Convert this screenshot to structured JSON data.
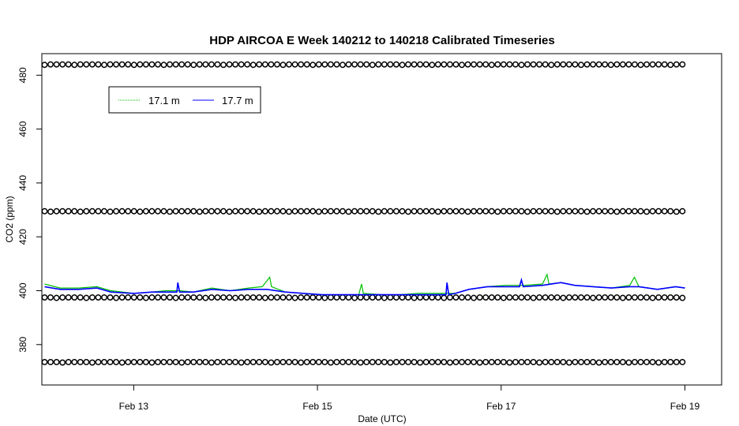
{
  "chart_data": {
    "type": "line",
    "title": "HDP AIRCOA E  Week 140212 to 140218  Calibrated Timeseries",
    "xlabel": "Date (UTC)",
    "ylabel": "CO2 (ppm)",
    "xlim_days": [
      12.0,
      19.4
    ],
    "ylim": [
      365,
      488
    ],
    "x_ticks": [
      {
        "value": 13,
        "label": "Feb 13"
      },
      {
        "value": 15,
        "label": "Feb 15"
      },
      {
        "value": 17,
        "label": "Feb 17"
      },
      {
        "value": 19,
        "label": "Feb 19"
      }
    ],
    "y_ticks": [
      380,
      400,
      420,
      440,
      460,
      480
    ],
    "grid": false,
    "legend_position": "top-left",
    "series": [
      {
        "name": "17.1 m",
        "color": "#00c000",
        "x": [
          12.03,
          12.2,
          12.4,
          12.6,
          12.75,
          13.0,
          13.2,
          13.35,
          13.5,
          13.65,
          13.85,
          14.05,
          14.25,
          14.4,
          14.48,
          14.5,
          14.65,
          14.85,
          15.05,
          15.3,
          15.45,
          15.48,
          15.5,
          15.7,
          15.9,
          16.1,
          16.3,
          16.4,
          16.5,
          16.65,
          16.85,
          17.05,
          17.25,
          17.45,
          17.5,
          17.52,
          17.65,
          17.8,
          18.0,
          18.2,
          18.4,
          18.45,
          18.5,
          18.7,
          18.9,
          19.0
        ],
        "y": [
          402.5,
          401,
          401,
          401.5,
          400,
          399,
          399.5,
          400,
          400,
          399.5,
          401,
          400,
          401,
          401.5,
          405,
          401.5,
          399.5,
          399,
          398.5,
          398.5,
          398.5,
          402.5,
          399,
          398.5,
          398.5,
          399,
          399,
          399,
          399,
          400.5,
          401.5,
          402,
          402,
          402.5,
          406,
          402.5,
          403,
          402,
          401.5,
          401,
          402,
          405,
          401.5,
          400.5,
          401.5,
          401
        ]
      },
      {
        "name": "17.7 m",
        "color": "#0000ff",
        "x": [
          12.03,
          12.2,
          12.4,
          12.6,
          12.75,
          13.0,
          13.2,
          13.35,
          13.47,
          13.48,
          13.5,
          13.65,
          13.85,
          14.05,
          14.25,
          14.45,
          14.65,
          14.85,
          15.05,
          15.3,
          15.5,
          15.7,
          15.9,
          16.1,
          16.3,
          16.4,
          16.41,
          16.43,
          16.5,
          16.65,
          16.85,
          17.05,
          17.2,
          17.22,
          17.24,
          17.45,
          17.65,
          17.8,
          18.0,
          18.2,
          18.4,
          18.5,
          18.7,
          18.9,
          19.0
        ],
        "y": [
          401.5,
          400.5,
          400.5,
          401,
          399.5,
          399,
          399.5,
          399.5,
          399.5,
          403,
          399.5,
          399.5,
          400.5,
          400,
          400.5,
          400.5,
          399.5,
          399,
          398.5,
          398.5,
          398.5,
          398.5,
          398.5,
          398.5,
          398.5,
          398.5,
          403,
          398.5,
          399,
          400.5,
          401.5,
          401.5,
          401.5,
          404,
          401.5,
          402,
          403,
          402,
          401.5,
          401,
          401.5,
          401.5,
          400.5,
          401.5,
          401
        ]
      },
      {
        "name": "",
        "style": "points",
        "color": "#000000",
        "x_start": 12.03,
        "x_end": 18.98,
        "levels": [
          484,
          429.5,
          397.5,
          373.5
        ]
      }
    ]
  }
}
